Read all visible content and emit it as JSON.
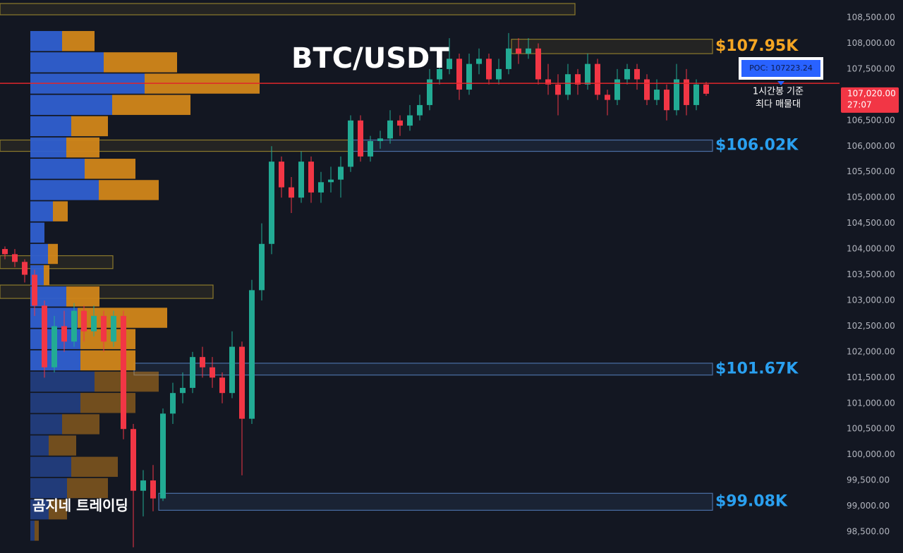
{
  "chart_data": {
    "type": "candlestick",
    "title": "BTC/USDT",
    "watermark": "곰지네 트레이딩",
    "ylim": [
      98089,
      108843
    ],
    "yticks": [
      {
        "value": 108500,
        "label": "108,500.00"
      },
      {
        "value": 108000,
        "label": "108,000.00"
      },
      {
        "value": 107500,
        "label": "107,500.00"
      },
      {
        "value": 107000,
        "label": "107,000.00"
      },
      {
        "value": 106500,
        "label": "106,500.00"
      },
      {
        "value": 106000,
        "label": "106,000.00"
      },
      {
        "value": 105500,
        "label": "105,500.00"
      },
      {
        "value": 105000,
        "label": "105,000.00"
      },
      {
        "value": 104500,
        "label": "104,500.00"
      },
      {
        "value": 104000,
        "label": "104,000.00"
      },
      {
        "value": 103500,
        "label": "103,500.00"
      },
      {
        "value": 103000,
        "label": "103,000.00"
      },
      {
        "value": 102500,
        "label": "102,500.00"
      },
      {
        "value": 102000,
        "label": "102,000.00"
      },
      {
        "value": 101500,
        "label": "101,500.00"
      },
      {
        "value": 101000,
        "label": "101,000.00"
      },
      {
        "value": 100500,
        "label": "100,500.00"
      },
      {
        "value": 100000,
        "label": "100,000.00"
      },
      {
        "value": 99500,
        "label": "99,500.00"
      },
      {
        "value": 99000,
        "label": "99,000.00"
      },
      {
        "value": 98500,
        "label": "98,500.00"
      }
    ],
    "grid": false,
    "colors": {
      "up": "#22ab94",
      "down": "#f23645"
    },
    "ohlc": {
      "open": [
        104000,
        103900,
        103750,
        103500,
        102900,
        101700,
        102500,
        102200,
        102800,
        102400,
        102700,
        102200,
        102700,
        100500,
        99300,
        99500,
        99150,
        100800,
        101200,
        101300,
        101900,
        101700,
        101500,
        101200,
        102100,
        100700,
        103200,
        104100,
        105700,
        105200,
        105000,
        105700,
        105100,
        105300,
        105350,
        105600,
        106500,
        105800,
        106100,
        106150,
        106500,
        106400,
        106600,
        106800,
        107300,
        107500,
        107700,
        107100,
        107600,
        107700,
        107300,
        107500,
        107900,
        107800,
        107900,
        107300,
        107200,
        107000,
        107400,
        107200,
        107600,
        107000,
        106900,
        107300,
        107500,
        107300,
        106900,
        107100,
        106700,
        107300,
        106800,
        107200
      ],
      "high": [
        104050,
        104000,
        103800,
        103600,
        103000,
        102700,
        102800,
        102950,
        102900,
        102900,
        102800,
        102800,
        102800,
        100600,
        99700,
        99800,
        100900,
        101400,
        101600,
        102000,
        102100,
        101900,
        101600,
        102400,
        102200,
        103400,
        104500,
        106000,
        105800,
        105400,
        105900,
        105800,
        105500,
        105600,
        105800,
        106600,
        106600,
        106200,
        106300,
        106700,
        106600,
        106800,
        107000,
        107500,
        107700,
        108100,
        107800,
        107800,
        107900,
        107800,
        107700,
        108200,
        108100,
        108100,
        108000,
        107600,
        107400,
        107600,
        107500,
        107800,
        107700,
        107100,
        107500,
        107600,
        107600,
        107400,
        107300,
        107200,
        107600,
        107500,
        107300,
        107250
      ],
      "low": [
        103800,
        103650,
        103350,
        102700,
        101500,
        101600,
        102000,
        102100,
        102200,
        102300,
        102000,
        102100,
        100300,
        98200,
        98800,
        98900,
        99100,
        100600,
        101000,
        101200,
        101500,
        101300,
        101000,
        101100,
        99600,
        100600,
        103000,
        103900,
        105000,
        104700,
        104900,
        104900,
        104900,
        105100,
        105000,
        105500,
        105700,
        105700,
        105950,
        106050,
        106200,
        106300,
        106500,
        106700,
        107200,
        107400,
        106900,
        107000,
        107400,
        107200,
        107200,
        107400,
        107600,
        107700,
        107200,
        107000,
        106600,
        106900,
        107000,
        107100,
        106900,
        106600,
        106800,
        107200,
        107100,
        106800,
        106800,
        106500,
        106600,
        106600,
        106700,
        106980
      ],
      "close": [
        103900,
        103750,
        103500,
        102900,
        101700,
        102500,
        102200,
        102800,
        102400,
        102700,
        102200,
        102700,
        100500,
        99300,
        99500,
        99150,
        100800,
        101200,
        101300,
        101900,
        101700,
        101500,
        101200,
        102100,
        100700,
        103200,
        104100,
        105700,
        105200,
        105000,
        105700,
        105100,
        105300,
        105350,
        105600,
        106500,
        105800,
        106100,
        106150,
        106500,
        106400,
        106600,
        106800,
        107300,
        107500,
        107700,
        107100,
        107600,
        107700,
        107300,
        107500,
        107900,
        107800,
        107900,
        107300,
        107200,
        107000,
        107400,
        107200,
        107600,
        107000,
        106900,
        107300,
        107500,
        107300,
        106900,
        107100,
        106700,
        107300,
        106800,
        107200,
        107020
      ]
    },
    "volume_profile": {
      "colors": {
        "buy": "#2f5fd0",
        "sell": "#d1861a"
      },
      "bins": [
        {
          "low": 107850,
          "high": 108240,
          "buy": 45,
          "sell": 46,
          "value_area": true
        },
        {
          "low": 107436,
          "high": 107826,
          "buy": 104,
          "sell": 104,
          "value_area": true
        },
        {
          "low": 107022,
          "high": 107412,
          "buy": 162,
          "sell": 163,
          "value_area": true
        },
        {
          "low": 106608,
          "high": 106998,
          "buy": 116,
          "sell": 111,
          "value_area": true
        },
        {
          "low": 106194,
          "high": 106584,
          "buy": 58,
          "sell": 52,
          "value_area": true
        },
        {
          "low": 105780,
          "high": 106170,
          "buy": 51,
          "sell": 47,
          "value_area": true
        },
        {
          "low": 105366,
          "high": 105756,
          "buy": 77,
          "sell": 72,
          "value_area": true
        },
        {
          "low": 104952,
          "high": 105342,
          "buy": 97,
          "sell": 85,
          "value_area": true
        },
        {
          "low": 104538,
          "high": 104928,
          "buy": 32,
          "sell": 21,
          "value_area": true
        },
        {
          "low": 104124,
          "high": 104514,
          "buy": 20,
          "sell": 0,
          "value_area": true
        },
        {
          "low": 103710,
          "high": 104100,
          "buy": 25,
          "sell": 14,
          "value_area": true
        },
        {
          "low": 103296,
          "high": 103686,
          "buy": 19,
          "sell": 8,
          "value_area": true
        },
        {
          "low": 102882,
          "high": 103272,
          "buy": 51,
          "sell": 47,
          "value_area": true
        },
        {
          "low": 102468,
          "high": 102858,
          "buy": 67,
          "sell": 127,
          "value_area": true
        },
        {
          "low": 102054,
          "high": 102444,
          "buy": 71,
          "sell": 78,
          "value_area": true
        },
        {
          "low": 101640,
          "high": 102030,
          "buy": 71,
          "sell": 78,
          "value_area": true
        },
        {
          "low": 101226,
          "high": 101616,
          "buy": 91,
          "sell": 91,
          "value_area": false
        },
        {
          "low": 100812,
          "high": 101202,
          "buy": 71,
          "sell": 78,
          "value_area": false
        },
        {
          "low": 100398,
          "high": 100788,
          "buy": 45,
          "sell": 53,
          "value_area": false
        },
        {
          "low": 99984,
          "high": 100374,
          "buy": 26,
          "sell": 39,
          "value_area": false
        },
        {
          "low": 99570,
          "high": 99960,
          "buy": 58,
          "sell": 66,
          "value_area": false
        },
        {
          "low": 99156,
          "high": 99546,
          "buy": 52,
          "sell": 58,
          "value_area": false
        },
        {
          "low": 98742,
          "high": 99132,
          "buy": 26,
          "sell": 26,
          "value_area": false
        },
        {
          "low": 98328,
          "high": 98718,
          "buy": 6,
          "sell": 6,
          "value_area": false
        }
      ]
    },
    "zones": [
      {
        "low": 108555,
        "high": 108775,
        "color": "#8c7a2c"
      },
      {
        "low": 107800,
        "high": 108080,
        "color": "#8c7a2c",
        "label": "$107.95K",
        "label_color": "#f5a623"
      },
      {
        "low": 105900,
        "high": 106120,
        "color": "#8c7a2c"
      },
      {
        "low": 105900,
        "high": 106120,
        "color": "#4a6fa5",
        "label": "$106.02K",
        "label_color": "#2aa0f0"
      },
      {
        "low": 103620,
        "high": 103870,
        "color": "#8c7a2c"
      },
      {
        "low": 103040,
        "high": 103300,
        "color": "#8c7a2c"
      },
      {
        "low": 101550,
        "high": 101780,
        "color": "#4a6fa5",
        "label": "$101.67K",
        "label_color": "#2aa0f0"
      },
      {
        "low": 98920,
        "high": 99250,
        "color": "#4a6fa5",
        "label": "$99.08K",
        "label_color": "#2aa0f0"
      }
    ],
    "poc": {
      "value": 107223.24,
      "label": "POC: 107223.24",
      "color": "#e0262b",
      "note": [
        "1시간봉 기준",
        "최다 매물대"
      ]
    },
    "last_price": {
      "value": 107020,
      "label": "107,020.00",
      "countdown": "27:07",
      "color": "#f23645"
    }
  }
}
